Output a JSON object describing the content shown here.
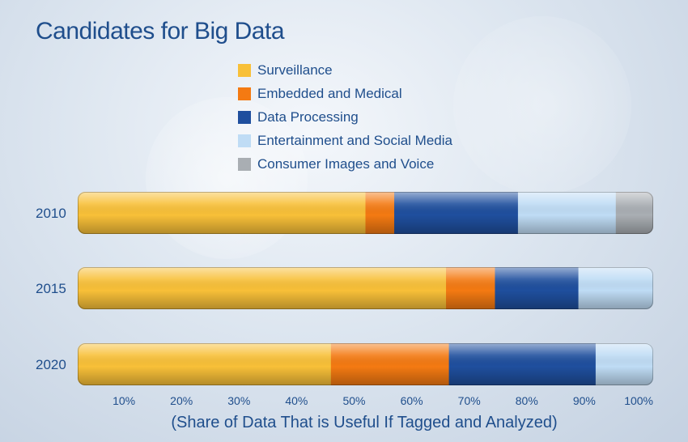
{
  "chart_data": {
    "type": "bar",
    "stacked": true,
    "orientation": "horizontal",
    "title": "Candidates for Big Data",
    "xlabel": "(Share of Data That is Useful If Tagged and Analyzed)",
    "ylabel": "",
    "xlim": [
      0,
      100
    ],
    "x_ticks": [
      "10%",
      "20%",
      "30%",
      "40%",
      "50%",
      "60%",
      "70%",
      "80%",
      "90%",
      "100%"
    ],
    "categories": [
      "2010",
      "2015",
      "2020"
    ],
    "series": [
      {
        "name": "Surveillance",
        "color": "#f8c038",
        "values": [
          50,
          64,
          44
        ]
      },
      {
        "name": "Embedded and Medical",
        "color": "#f47a12",
        "values": [
          5,
          8.5,
          20.5
        ]
      },
      {
        "name": "Data Processing",
        "color": "#1f4f9e",
        "values": [
          21.5,
          14.5,
          25.5
        ]
      },
      {
        "name": "Entertainment and Social Media",
        "color": "#bfdcf5",
        "values": [
          17,
          13,
          10
        ]
      },
      {
        "name": "Consumer Images and Voice",
        "color": "#a9aeb3",
        "values": [
          6.5,
          0,
          0
        ]
      }
    ],
    "legend_position": "top",
    "grid": false
  }
}
